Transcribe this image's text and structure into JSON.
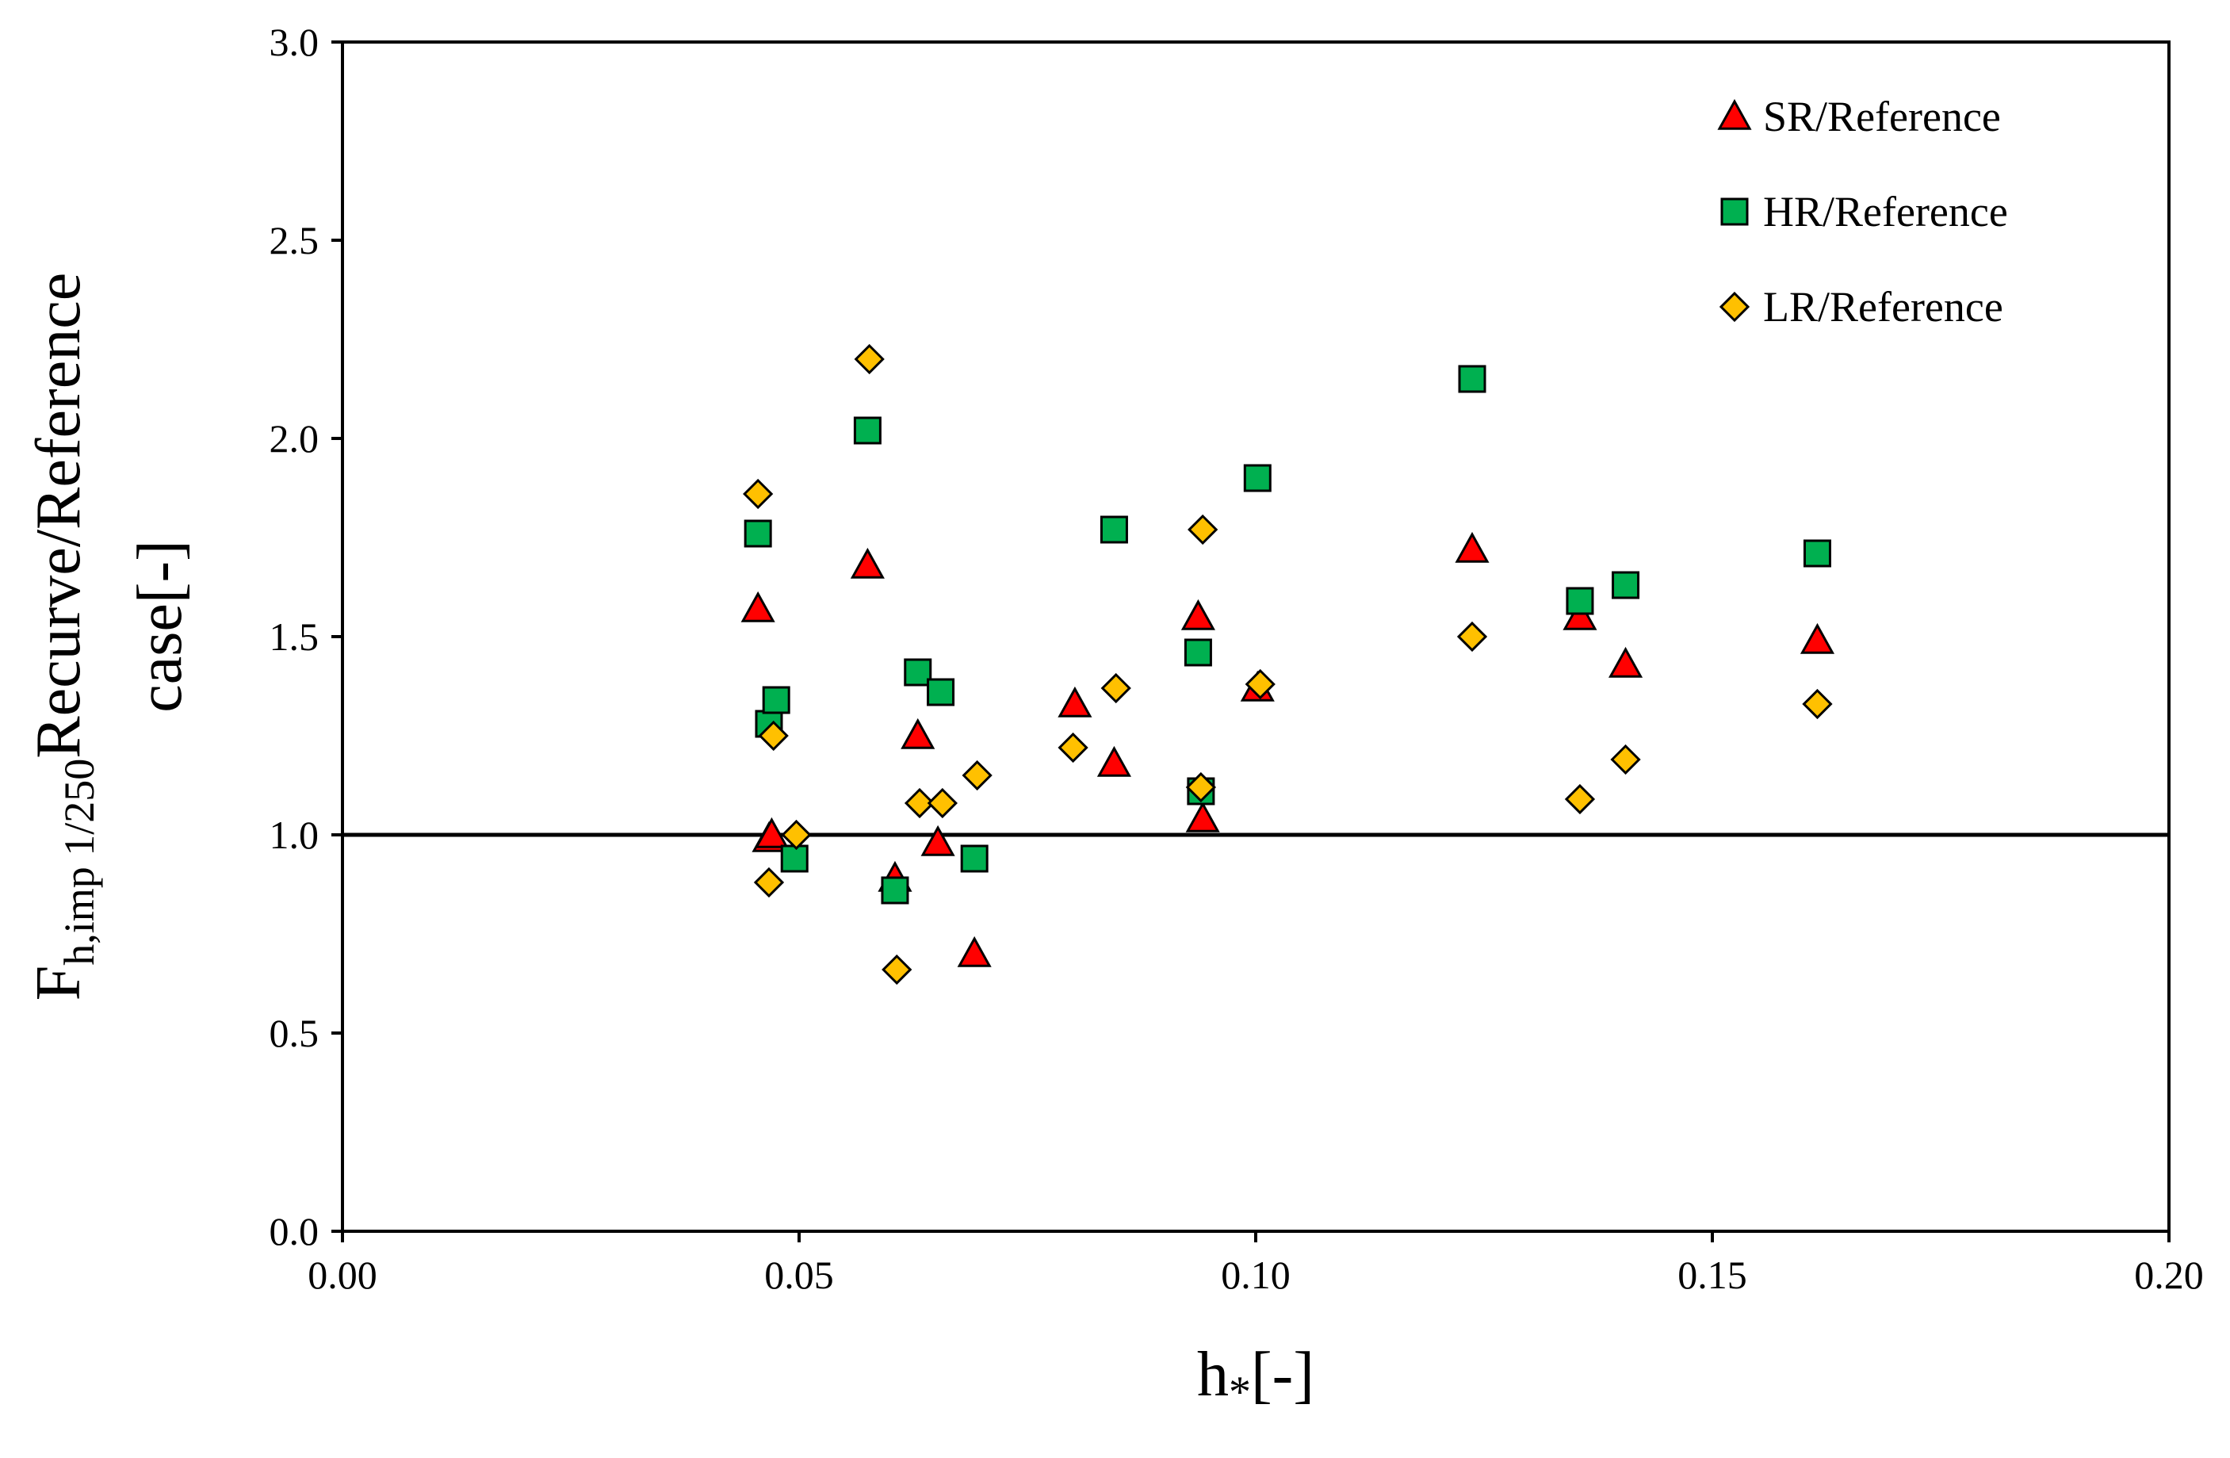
{
  "chart_data": {
    "type": "scatter",
    "title": "",
    "xlabel": {
      "base": "h",
      "sub": "*",
      "suffix": "[-]"
    },
    "ylabel": {
      "base": "F",
      "sub": "h,imp 1/250",
      "line1": "Recurve/Reference",
      "line2": "case[-]"
    },
    "xlim": [
      0,
      0.2
    ],
    "ylim": [
      0,
      3.0
    ],
    "xticks": [
      0.0,
      0.05,
      0.1,
      0.15,
      0.2
    ],
    "xtick_labels": [
      "0.00",
      "0.05",
      "0.10",
      "0.15",
      "0.20"
    ],
    "yticks": [
      0.0,
      0.5,
      1.0,
      1.5,
      2.0,
      2.5,
      3.0
    ],
    "ytick_labels": [
      "0.0",
      "0.5",
      "1.0",
      "1.5",
      "2.0",
      "2.5",
      "3.0"
    ],
    "reference_line": {
      "y": 1.0
    },
    "legend": {
      "position": "top-right"
    },
    "series": [
      {
        "name": "SR/Reference",
        "marker": "triangle",
        "color": "#ff0000",
        "points": [
          [
            0.0455,
            1.57
          ],
          [
            0.0467,
            0.99
          ],
          [
            0.047,
            1.0
          ],
          [
            0.0575,
            1.68
          ],
          [
            0.0605,
            0.89
          ],
          [
            0.063,
            1.25
          ],
          [
            0.0652,
            0.98
          ],
          [
            0.0692,
            0.7
          ],
          [
            0.0802,
            1.33
          ],
          [
            0.0845,
            1.18
          ],
          [
            0.0937,
            1.55
          ],
          [
            0.0942,
            1.04
          ],
          [
            0.1002,
            1.37
          ],
          [
            0.1237,
            1.72
          ],
          [
            0.1355,
            1.55
          ],
          [
            0.1405,
            1.43
          ],
          [
            0.1615,
            1.49
          ]
        ]
      },
      {
        "name": "HR/Reference",
        "marker": "square",
        "color": "#00b050",
        "points": [
          [
            0.0455,
            1.76
          ],
          [
            0.0467,
            1.28
          ],
          [
            0.0475,
            1.34
          ],
          [
            0.0495,
            0.94
          ],
          [
            0.0575,
            2.02
          ],
          [
            0.0605,
            0.86
          ],
          [
            0.063,
            1.41
          ],
          [
            0.0655,
            1.36
          ],
          [
            0.0692,
            0.94
          ],
          [
            0.0845,
            1.77
          ],
          [
            0.0937,
            1.46
          ],
          [
            0.094,
            1.11
          ],
          [
            0.1002,
            1.9
          ],
          [
            0.1237,
            2.15
          ],
          [
            0.1355,
            1.59
          ],
          [
            0.1405,
            1.63
          ],
          [
            0.1615,
            1.71
          ]
        ]
      },
      {
        "name": "LR/Reference",
        "marker": "diamond",
        "color": "#ffc000",
        "points": [
          [
            0.0455,
            1.86
          ],
          [
            0.0467,
            0.88
          ],
          [
            0.0472,
            1.25
          ],
          [
            0.0497,
            1.0
          ],
          [
            0.0577,
            2.2
          ],
          [
            0.0607,
            0.66
          ],
          [
            0.0632,
            1.08
          ],
          [
            0.0657,
            1.08
          ],
          [
            0.0695,
            1.15
          ],
          [
            0.08,
            1.22
          ],
          [
            0.0847,
            1.37
          ],
          [
            0.0942,
            1.77
          ],
          [
            0.094,
            1.12
          ],
          [
            0.1005,
            1.38
          ],
          [
            0.1237,
            1.5
          ],
          [
            0.1355,
            1.09
          ],
          [
            0.1405,
            1.19
          ],
          [
            0.1615,
            1.33
          ]
        ]
      }
    ]
  }
}
